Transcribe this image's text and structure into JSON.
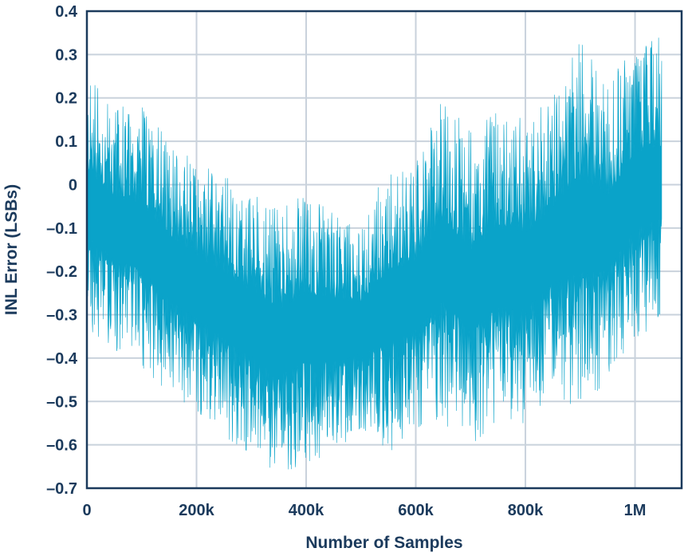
{
  "chart_data": {
    "type": "area",
    "title": "",
    "xlabel": "Number of Samples",
    "ylabel": "INL Error (LSBs)",
    "xlim": [
      0,
      1085000
    ],
    "ylim": [
      -0.7,
      0.4
    ],
    "x_data_end": 1048575,
    "x_ticks": [
      {
        "value": 0,
        "label": "0"
      },
      {
        "value": 200000,
        "label": "200k"
      },
      {
        "value": 400000,
        "label": "400k"
      },
      {
        "value": 600000,
        "label": "600k"
      },
      {
        "value": 800000,
        "label": "800k"
      },
      {
        "value": 1000000,
        "label": "1M"
      }
    ],
    "y_ticks": [
      {
        "value": 0.4,
        "label": "0.4"
      },
      {
        "value": 0.3,
        "label": "0.3"
      },
      {
        "value": 0.2,
        "label": "0.2"
      },
      {
        "value": 0.1,
        "label": "0.1"
      },
      {
        "value": 0,
        "label": "0"
      },
      {
        "value": -0.1,
        "label": "–0.1"
      },
      {
        "value": -0.2,
        "label": "–0.2"
      },
      {
        "value": -0.3,
        "label": "–0.3"
      },
      {
        "value": -0.4,
        "label": "–0.4"
      },
      {
        "value": -0.5,
        "label": "–0.5"
      },
      {
        "value": -0.6,
        "label": "–0.6"
      },
      {
        "value": -0.7,
        "label": "–0.7"
      }
    ],
    "grid": true,
    "legend": "none",
    "series": [
      {
        "color": "#0aa3c9",
        "x": [
          0,
          50000,
          100000,
          150000,
          200000,
          250000,
          300000,
          350000,
          400000,
          450000,
          500000,
          550000,
          600000,
          650000,
          700000,
          750000,
          800000,
          850000,
          900000,
          950000,
          1000000,
          1048575
        ],
        "upper": [
          0.25,
          0.18,
          0.18,
          0.1,
          0.05,
          0.02,
          -0.02,
          -0.06,
          -0.02,
          -0.05,
          -0.1,
          0.05,
          0.05,
          0.2,
          0.12,
          0.17,
          0.15,
          0.2,
          0.33,
          0.23,
          0.33,
          0.34
        ],
        "lower": [
          -0.33,
          -0.38,
          -0.42,
          -0.48,
          -0.52,
          -0.58,
          -0.62,
          -0.67,
          -0.64,
          -0.62,
          -0.56,
          -0.62,
          -0.56,
          -0.55,
          -0.6,
          -0.55,
          -0.55,
          -0.48,
          -0.52,
          -0.45,
          -0.36,
          -0.33
        ]
      }
    ]
  }
}
